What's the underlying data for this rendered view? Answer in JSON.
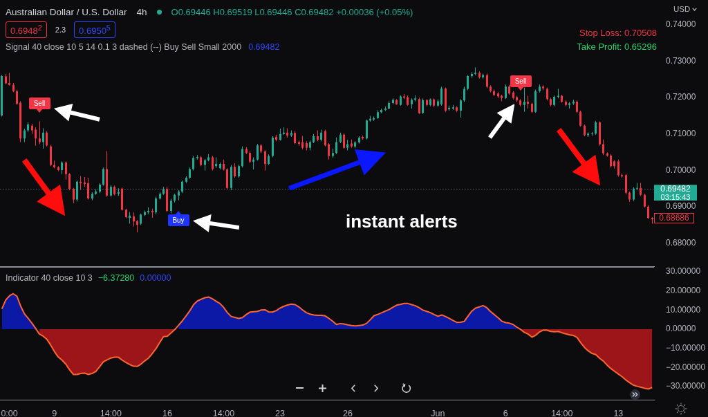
{
  "chart_data": [
    {
      "type": "candlestick",
      "title": "Australian Dollar / U.S. Dollar",
      "subtitle": "4h",
      "ylabel": "USD",
      "categories": [
        null,
        null,
        null,
        null,
        null,
        null,
        null,
        null,
        null,
        null,
        null,
        null,
        null,
        null,
        null,
        null,
        null,
        null,
        null,
        null,
        null,
        null,
        null,
        null,
        null,
        null,
        null,
        null,
        null,
        null,
        null,
        null,
        null,
        null,
        null,
        null,
        null,
        null,
        null,
        null,
        null,
        null,
        null,
        null,
        null,
        null,
        null,
        null,
        null,
        null,
        null,
        null,
        null,
        null,
        null,
        null,
        null,
        null,
        null,
        null,
        null,
        null,
        null,
        null,
        null,
        null,
        null,
        null,
        null,
        null,
        null,
        null,
        null,
        null,
        null,
        null,
        null,
        null,
        null,
        null,
        null,
        null,
        null,
        null,
        null,
        null,
        null,
        null,
        null,
        null,
        null,
        null,
        null,
        null,
        null,
        null,
        null,
        null,
        null,
        null,
        null,
        null,
        null,
        null,
        null,
        null,
        null,
        null,
        null,
        null,
        null,
        null,
        null,
        null,
        null,
        null,
        null,
        null,
        null,
        null,
        null,
        null,
        null,
        null,
        null,
        null,
        null,
        null,
        null,
        null,
        null,
        null,
        null,
        null,
        null,
        null,
        null,
        null,
        null,
        null,
        null,
        null,
        null,
        null,
        null,
        null,
        null,
        null,
        null,
        null,
        null,
        null,
        null,
        null,
        null,
        null,
        null,
        null,
        null,
        null,
        null,
        null,
        null,
        null,
        null,
        null,
        null,
        null,
        null,
        null,
        null,
        null,
        null,
        null
      ],
      "ohlc": [
        [
          0.7151,
          0.7262,
          0.7148,
          0.7259
        ],
        [
          0.7258,
          0.7265,
          0.7237,
          0.7239
        ],
        [
          0.724,
          0.7268,
          0.7233,
          0.7235
        ],
        [
          0.7235,
          0.724,
          0.7215,
          0.7218
        ],
        [
          0.7218,
          0.7221,
          0.718,
          0.7183
        ],
        [
          0.7186,
          0.719,
          0.7078,
          0.7088
        ],
        [
          0.7088,
          0.7115,
          0.7078,
          0.711
        ],
        [
          0.711,
          0.7132,
          0.7106,
          0.7126
        ],
        [
          0.7123,
          0.7128,
          0.71,
          0.711
        ],
        [
          0.7112,
          0.7118,
          0.7068,
          0.7088
        ],
        [
          0.7088,
          0.7135,
          0.7072,
          0.7078
        ],
        [
          0.7078,
          0.7116,
          0.706,
          0.7104
        ],
        [
          0.7104,
          0.7108,
          0.7066,
          0.7069
        ],
        [
          0.7066,
          0.707,
          0.7012,
          0.7015
        ],
        [
          0.7015,
          0.7027,
          0.7006,
          0.7009
        ],
        [
          0.7009,
          0.7012,
          0.6998,
          0.7001
        ],
        [
          0.7001,
          0.7025,
          0.699,
          0.7022
        ],
        [
          0.7022,
          0.7025,
          0.6975,
          0.699
        ],
        [
          0.699,
          0.6993,
          0.6946,
          0.6949
        ],
        [
          0.6949,
          0.6952,
          0.691,
          0.692
        ],
        [
          0.692,
          0.6972,
          0.6915,
          0.6969
        ],
        [
          0.6969,
          0.6985,
          0.6947,
          0.6965
        ],
        [
          0.6967,
          0.6982,
          0.6955,
          0.6963
        ],
        [
          0.6965,
          0.698,
          0.692,
          0.6923
        ],
        [
          0.6923,
          0.694,
          0.6918,
          0.6936
        ],
        [
          0.6936,
          0.6948,
          0.6933,
          0.6942
        ],
        [
          0.6942,
          0.6965,
          0.6938,
          0.6961
        ],
        [
          0.6961,
          0.7008,
          0.6958,
          0.7004
        ],
        [
          0.7004,
          0.7053,
          0.6928,
          0.6931
        ],
        [
          0.6931,
          0.696,
          0.6928,
          0.6955
        ],
        [
          0.6955,
          0.6958,
          0.6932,
          0.6935
        ],
        [
          0.6936,
          0.6951,
          0.693,
          0.6941
        ],
        [
          0.695,
          0.6953,
          0.689,
          0.6892
        ],
        [
          0.6892,
          0.6895,
          0.6869,
          0.6872
        ],
        [
          0.687,
          0.6886,
          0.6854,
          0.6876
        ],
        [
          0.6874,
          0.6885,
          0.6846,
          0.686
        ],
        [
          0.6861,
          0.6864,
          0.683,
          0.6851
        ],
        [
          0.6854,
          0.6882,
          0.685,
          0.6879
        ],
        [
          0.6878,
          0.689,
          0.6875,
          0.6885
        ],
        [
          0.6885,
          0.6899,
          0.688,
          0.6889
        ],
        [
          0.6889,
          0.6895,
          0.687,
          0.6885
        ],
        [
          0.6885,
          0.6928,
          0.688,
          0.6923
        ],
        [
          0.6923,
          0.694,
          0.692,
          0.6936
        ],
        [
          0.6936,
          0.6955,
          0.6933,
          0.6949
        ],
        [
          0.6949,
          0.6955,
          0.6886,
          0.6889
        ],
        [
          0.6889,
          0.6922,
          0.6882,
          0.6917
        ],
        [
          0.6917,
          0.6936,
          0.6912,
          0.6933
        ],
        [
          0.6931,
          0.6946,
          0.6918,
          0.6942
        ],
        [
          0.6942,
          0.6972,
          0.6938,
          0.6969
        ],
        [
          0.6969,
          0.6984,
          0.6966,
          0.698
        ],
        [
          0.698,
          0.7008,
          0.6977,
          0.7004
        ],
        [
          0.7004,
          0.704,
          0.7,
          0.7034
        ],
        [
          0.7034,
          0.7042,
          0.703,
          0.7037
        ],
        [
          0.7036,
          0.704,
          0.7012,
          0.7015
        ],
        [
          0.7015,
          0.7032,
          0.7,
          0.7028
        ],
        [
          0.7028,
          0.7045,
          0.7025,
          0.7036
        ],
        [
          0.7036,
          0.704,
          0.7,
          0.7004
        ],
        [
          0.7012,
          0.7036,
          0.7007,
          0.7018
        ],
        [
          0.7006,
          0.7022,
          0.7003,
          0.7018
        ],
        [
          0.7018,
          0.703,
          0.7,
          0.7003
        ],
        [
          0.7003,
          0.7006,
          0.6948,
          0.6952
        ],
        [
          0.6952,
          0.7015,
          0.6946,
          0.701
        ],
        [
          0.701,
          0.702,
          0.698,
          0.6984
        ],
        [
          0.6984,
          0.7016,
          0.698,
          0.7012
        ],
        [
          0.7012,
          0.7066,
          0.7008,
          0.7059
        ],
        [
          0.7059,
          0.7064,
          0.7045,
          0.7048
        ],
        [
          0.7048,
          0.7052,
          0.702,
          0.7024
        ],
        [
          0.7024,
          0.7036,
          0.7003,
          0.703
        ],
        [
          0.703,
          0.7073,
          0.7027,
          0.7069
        ],
        [
          0.7069,
          0.7072,
          0.7048,
          0.7052
        ],
        [
          0.7052,
          0.7055,
          0.7,
          0.7018
        ],
        [
          0.7018,
          0.7044,
          0.7015,
          0.704
        ],
        [
          0.704,
          0.7094,
          0.7036,
          0.709
        ],
        [
          0.7092,
          0.7098,
          0.708,
          0.7084
        ],
        [
          0.7084,
          0.7115,
          0.7082,
          0.71
        ],
        [
          0.71,
          0.7118,
          0.7098,
          0.7104
        ],
        [
          0.7104,
          0.7116,
          0.709,
          0.7096
        ],
        [
          0.7096,
          0.711,
          0.7092,
          0.7103
        ],
        [
          0.7103,
          0.7108,
          0.7072,
          0.7075
        ],
        [
          0.7078,
          0.7082,
          0.7068,
          0.7073
        ],
        [
          0.7078,
          0.7095,
          0.7058,
          0.7062
        ],
        [
          0.7075,
          0.708,
          0.7055,
          0.7062
        ],
        [
          0.7062,
          0.7082,
          0.7055,
          0.7078
        ],
        [
          0.7078,
          0.71,
          0.7075,
          0.7094
        ],
        [
          0.7094,
          0.711,
          0.708,
          0.7084
        ],
        [
          0.7084,
          0.7112,
          0.708,
          0.7104
        ],
        [
          0.7108,
          0.7112,
          0.7066,
          0.7069
        ],
        [
          0.7072,
          0.7075,
          0.703,
          0.704
        ],
        [
          0.704,
          0.706,
          0.7035,
          0.7048
        ],
        [
          0.7048,
          0.709,
          0.7045,
          0.7078
        ],
        [
          0.7078,
          0.7104,
          0.7075,
          0.7098
        ],
        [
          0.7098,
          0.7102,
          0.706,
          0.7062
        ],
        [
          0.7062,
          0.7084,
          0.7055,
          0.7072
        ],
        [
          0.7074,
          0.7085,
          0.7062,
          0.7066
        ],
        [
          0.7066,
          0.708,
          0.7062,
          0.7077
        ],
        [
          0.7077,
          0.7094,
          0.7074,
          0.709
        ],
        [
          0.7092,
          0.7096,
          0.7084,
          0.7088
        ],
        [
          0.7088,
          0.714,
          0.7085,
          0.7137
        ],
        [
          0.7137,
          0.715,
          0.7134,
          0.7142
        ],
        [
          0.714,
          0.7148,
          0.7136,
          0.7144
        ],
        [
          0.7144,
          0.7165,
          0.7142,
          0.716
        ],
        [
          0.716,
          0.717,
          0.7157,
          0.7166
        ],
        [
          0.7166,
          0.7175,
          0.7163,
          0.717
        ],
        [
          0.717,
          0.719,
          0.7168,
          0.7185
        ],
        [
          0.7185,
          0.7198,
          0.7182,
          0.7194
        ],
        [
          0.7193,
          0.7196,
          0.718,
          0.7182
        ],
        [
          0.718,
          0.7206,
          0.7178,
          0.7203
        ],
        [
          0.7203,
          0.721,
          0.7196,
          0.72
        ],
        [
          0.7201,
          0.7206,
          0.7178,
          0.718
        ],
        [
          0.7182,
          0.7198,
          0.717,
          0.7194
        ],
        [
          0.7194,
          0.7206,
          0.719,
          0.7198
        ],
        [
          0.7196,
          0.72,
          0.7155,
          0.7157
        ],
        [
          0.7158,
          0.7198,
          0.7155,
          0.7193
        ],
        [
          0.7193,
          0.7196,
          0.7176,
          0.718
        ],
        [
          0.718,
          0.7198,
          0.7176,
          0.7195
        ],
        [
          0.7195,
          0.7198,
          0.7174,
          0.7178
        ],
        [
          0.7178,
          0.7195,
          0.7175,
          0.719
        ],
        [
          0.7182,
          0.723,
          0.7178,
          0.7225
        ],
        [
          0.7225,
          0.7228,
          0.716,
          0.7164
        ],
        [
          0.7168,
          0.7178,
          0.7164,
          0.7172
        ],
        [
          0.717,
          0.718,
          0.7166,
          0.7173
        ],
        [
          0.7173,
          0.7176,
          0.716,
          0.7164
        ],
        [
          0.7164,
          0.7196,
          0.7145,
          0.7192
        ],
        [
          0.7192,
          0.723,
          0.7188,
          0.7224
        ],
        [
          0.7224,
          0.7262,
          0.722,
          0.7259
        ],
        [
          0.7259,
          0.727,
          0.7255,
          0.7265
        ],
        [
          0.7265,
          0.7283,
          0.7262,
          0.7268
        ],
        [
          0.7268,
          0.7272,
          0.7252,
          0.7256
        ],
        [
          0.7256,
          0.7266,
          0.7252,
          0.7262
        ],
        [
          0.7262,
          0.7266,
          0.7226,
          0.723
        ],
        [
          0.723,
          0.7234,
          0.7214,
          0.7218
        ],
        [
          0.7218,
          0.7222,
          0.7204,
          0.7208
        ],
        [
          0.7211,
          0.7215,
          0.7199,
          0.7203
        ],
        [
          0.7205,
          0.7208,
          0.719,
          0.7199
        ],
        [
          0.7199,
          0.7236,
          0.7196,
          0.723
        ],
        [
          0.723,
          0.7235,
          0.7208,
          0.7211
        ],
        [
          0.7214,
          0.7218,
          0.7195,
          0.7199
        ],
        [
          0.7201,
          0.7205,
          0.7188,
          0.7192
        ],
        [
          0.7192,
          0.7196,
          0.7176,
          0.718
        ],
        [
          0.718,
          0.7228,
          0.7161,
          0.7189
        ],
        [
          0.7189,
          0.7205,
          0.717,
          0.7183
        ],
        [
          0.7183,
          0.7186,
          0.7158,
          0.7161
        ],
        [
          0.7161,
          0.7222,
          0.7158,
          0.7218
        ],
        [
          0.7218,
          0.7236,
          0.7214,
          0.723
        ],
        [
          0.723,
          0.7234,
          0.722,
          0.7226
        ],
        [
          0.7224,
          0.7228,
          0.7192,
          0.7196
        ],
        [
          0.7196,
          0.72,
          0.7176,
          0.718
        ],
        [
          0.718,
          0.7206,
          0.7176,
          0.7202
        ],
        [
          0.7202,
          0.7224,
          0.7198,
          0.7205
        ],
        [
          0.7205,
          0.7208,
          0.7186,
          0.7189
        ],
        [
          0.7189,
          0.7192,
          0.7176,
          0.718
        ],
        [
          0.718,
          0.7188,
          0.717,
          0.7184
        ],
        [
          0.7184,
          0.7194,
          0.718,
          0.7189
        ],
        [
          0.7189,
          0.7192,
          0.7158,
          0.7161
        ],
        [
          0.7161,
          0.7164,
          0.712,
          0.7123
        ],
        [
          0.7123,
          0.7126,
          0.7094,
          0.7097
        ],
        [
          0.7097,
          0.7105,
          0.7092,
          0.7101
        ],
        [
          0.7099,
          0.7106,
          0.7096,
          0.7101
        ],
        [
          0.7101,
          0.7136,
          0.7098,
          0.7132
        ],
        [
          0.7132,
          0.7135,
          0.7068,
          0.7072
        ],
        [
          0.7072,
          0.7085,
          0.7042,
          0.7047
        ],
        [
          0.7047,
          0.705,
          0.7038,
          0.7041
        ],
        [
          0.7041,
          0.7045,
          0.7008,
          0.7012
        ],
        [
          0.7025,
          0.7028,
          0.7005,
          0.7012
        ],
        [
          0.7025,
          0.703,
          0.6983,
          0.6987
        ],
        [
          0.6987,
          0.6992,
          0.698,
          0.6984
        ],
        [
          0.6987,
          0.699,
          0.6935,
          0.6939
        ],
        [
          0.6939,
          0.6942,
          0.6914,
          0.692
        ],
        [
          0.692,
          0.6954,
          0.6916,
          0.695
        ],
        [
          0.695,
          0.6966,
          0.6946,
          0.6952
        ],
        [
          0.6952,
          0.6966,
          0.693,
          0.6933
        ],
        [
          0.6933,
          0.6936,
          0.6898,
          0.6901
        ],
        [
          0.6901,
          0.6904,
          0.6866,
          0.687
        ],
        [
          0.687,
          0.6872,
          0.6854,
          0.6866
        ]
      ],
      "ylim": [
        0.6737,
        0.7468
      ],
      "yticks": [
        {
          "value": 0.68,
          "label": "0.68000"
        },
        {
          "value": 0.69,
          "label": "0.69000"
        },
        {
          "value": 0.7,
          "label": "0.70000"
        },
        {
          "value": 0.71,
          "label": "0.71000"
        },
        {
          "value": 0.72,
          "label": "0.72000"
        },
        {
          "value": 0.73,
          "label": "0.73000"
        },
        {
          "value": 0.74,
          "label": "0.74000"
        }
      ],
      "ref_lines": [
        {
          "axis": "y",
          "value": 0.69482,
          "label": "0.69482",
          "color": "#5d606b",
          "line_style": "dotted"
        }
      ],
      "annotations": [
        "O0.69446 H0.69519 L0.69446 C0.69482 +0.00036 (+0.05%)",
        "0.6948$^{2}$",
        "2.3",
        "0.6950$^{5}$",
        "Signal 40 close 10 5 14 0.1 3 dashed (--) Buy Sell Small 2000",
        "0.69482",
        "Stop Loss: 0.70508",
        "Take Profit: 0.65296",
        "instant alerts",
        "03:15:43",
        "0.68686",
        "Sell",
        "Sell",
        "Buy"
      ],
      "tick_labels": "y"
    },
    {
      "type": "area",
      "title": "Indicator 40 close 10 3",
      "categories": [
        null,
        null,
        "0:00",
        null,
        null,
        null,
        null,
        null,
        null,
        null,
        null,
        null,
        null,
        null,
        "9",
        null,
        null,
        null,
        null,
        null,
        null,
        null,
        null,
        null,
        null,
        null,
        null,
        null,
        null,
        "14:00",
        null,
        null,
        null,
        null,
        null,
        null,
        null,
        null,
        null,
        null,
        null,
        null,
        null,
        null,
        "16",
        null,
        null,
        null,
        null,
        null,
        null,
        null,
        null,
        null,
        null,
        null,
        null,
        null,
        null,
        "14:00",
        null,
        null,
        null,
        null,
        null,
        null,
        null,
        null,
        null,
        null,
        null,
        null,
        null,
        null,
        "23",
        null,
        null,
        null,
        null,
        null,
        null,
        null,
        null,
        null,
        null,
        null,
        null,
        null,
        null,
        null,
        null,
        null,
        "26",
        null,
        null,
        null,
        null,
        null,
        null,
        null,
        null,
        null,
        null,
        null,
        null,
        null,
        null,
        null,
        null,
        null,
        null,
        null,
        null,
        null,
        null,
        null,
        "Jun",
        null,
        null,
        null,
        null,
        null,
        null,
        null,
        null,
        null,
        null,
        null,
        null,
        null,
        null,
        null,
        null,
        null,
        "6",
        null,
        null,
        null,
        null,
        null,
        null,
        null,
        null,
        null,
        null,
        null,
        null,
        null,
        null,
        "14:00",
        null,
        null,
        null,
        null,
        null,
        null,
        null,
        null,
        null,
        null,
        null,
        null,
        null,
        null,
        "13",
        null,
        null,
        null,
        null,
        null,
        null,
        null,
        null,
        null
      ],
      "series": [
        {
          "type": "area",
          "color": "#0c18a6",
          "values": [
            10.6,
            15.1,
            17.4,
            18.5,
            17.2,
            12.0,
            8.0,
            5.6,
            3.1,
            0.3,
            null,
            null,
            null,
            null,
            null,
            null,
            null,
            null,
            null,
            null,
            null,
            null,
            null,
            null,
            null,
            null,
            null,
            null,
            null,
            null,
            null,
            null,
            null,
            null,
            null,
            null,
            null,
            null,
            null,
            null,
            null,
            null,
            null,
            null,
            null,
            null,
            null,
            2.0,
            4.3,
            6.9,
            9.6,
            12.8,
            14.7,
            15.6,
            16.4,
            16.8,
            15.8,
            14.6,
            13.4,
            11.3,
            8.6,
            6.6,
            6.1,
            5.6,
            6.0,
            7.6,
            8.9,
            9.1,
            9.3,
            10.0,
            10.1,
            9.0,
            8.9,
            9.7,
            11.0,
            11.9,
            12.6,
            13.1,
            12.8,
            11.6,
            10.0,
            8.6,
            7.8,
            7.4,
            7.2,
            7.2,
            6.9,
            5.6,
            4.1,
            2.4,
            2.9,
            2.7,
            2.2,
            1.9,
            1.7,
            1.9,
            2.1,
            3.0,
            4.9,
            7.0,
            7.7,
            8.5,
            9.4,
            10.2,
            11.4,
            12.5,
            12.9,
            13.4,
            13.4,
            12.8,
            12.2,
            11.2,
            9.9,
            9.3,
            8.6,
            7.6,
            6.7,
            7.4,
            6.6,
            5.6,
            4.5,
            3.5,
            3.6,
            4.0,
            6.8,
            9.4,
            11.0,
            11.6,
            12.3,
            11.2,
            9.2,
            7.6,
            5.9,
            4.1,
            3.4,
            3.1,
            2.4,
            1.0,
            null,
            null,
            null,
            null,
            null,
            null,
            null,
            null,
            null,
            null,
            null,
            null,
            null,
            null,
            null,
            null,
            null,
            null,
            null,
            null,
            null,
            null,
            null,
            null,
            null,
            null,
            null,
            null,
            null,
            null,
            null,
            null,
            null,
            null,
            null,
            null
          ]
        },
        {
          "type": "area",
          "color": "#9c1519",
          "values": [
            null,
            null,
            null,
            null,
            null,
            null,
            null,
            null,
            null,
            null,
            -2.6,
            -3.7,
            -5.4,
            -8.4,
            -11.8,
            -14.6,
            -16.2,
            -18.3,
            -21.2,
            -23.7,
            -23.7,
            -23.2,
            -23.0,
            -23.7,
            -23.2,
            -22.1,
            -19.7,
            -17.1,
            -16.1,
            -15.1,
            -14.7,
            -14.7,
            -16.2,
            -17.4,
            -18.5,
            -19.4,
            -19.5,
            -18.3,
            -16.6,
            -15.2,
            -12.8,
            -10.2,
            -7.0,
            -3.9,
            -3.7,
            -2.0,
            -0.2,
            null,
            null,
            null,
            null,
            null,
            null,
            null,
            null,
            null,
            null,
            null,
            null,
            null,
            null,
            null,
            null,
            null,
            null,
            null,
            null,
            null,
            null,
            null,
            null,
            null,
            null,
            null,
            null,
            null,
            null,
            null,
            null,
            null,
            null,
            null,
            null,
            null,
            null,
            null,
            null,
            null,
            null,
            null,
            null,
            null,
            null,
            null,
            null,
            null,
            null,
            null,
            null,
            null,
            null,
            null,
            null,
            null,
            null,
            null,
            null,
            null,
            null,
            null,
            null,
            null,
            null,
            null,
            null,
            null,
            null,
            null,
            null,
            null,
            null,
            null,
            null,
            null,
            null,
            null,
            null,
            null,
            null,
            null,
            null,
            null,
            null,
            null,
            null,
            null,
            null,
            null,
            -0.2,
            -1.7,
            -2.6,
            -4.2,
            -3.2,
            -1.5,
            -0.5,
            -0.6,
            -1.2,
            -1.4,
            -1.2,
            -1.9,
            -2.5,
            -3.0,
            -3.3,
            -4.3,
            -7.1,
            -9.6,
            -11.4,
            -12.7,
            -13.3,
            -15.2,
            -16.7,
            -18.8,
            -20.6,
            -22.1,
            -23.5,
            -24.9,
            -26.6,
            -28.0,
            -29.3,
            -29.9,
            -30.4,
            -30.9,
            -31.3,
            -30.5
          ]
        },
        {
          "type": "line",
          "color": "#ff6530",
          "values": [
            10.6,
            15.1,
            17.4,
            18.5,
            17.2,
            12.0,
            8.0,
            5.6,
            3.1,
            0.3,
            -2.6,
            -3.7,
            -5.4,
            -8.4,
            -11.8,
            -14.6,
            -16.2,
            -18.3,
            -21.2,
            -23.7,
            -23.7,
            -23.2,
            -23.0,
            -23.7,
            -23.2,
            -22.1,
            -19.7,
            -17.1,
            -16.1,
            -15.1,
            -14.7,
            -14.7,
            -16.2,
            -17.4,
            -18.5,
            -19.4,
            -19.5,
            -18.3,
            -16.6,
            -15.2,
            -12.8,
            -10.2,
            -7.0,
            -3.9,
            -3.7,
            -2.0,
            -0.2,
            2.0,
            4.3,
            6.9,
            9.6,
            12.8,
            14.7,
            15.6,
            16.4,
            16.8,
            15.8,
            14.6,
            13.4,
            11.3,
            8.6,
            6.6,
            6.1,
            5.6,
            6.0,
            7.6,
            8.9,
            9.1,
            9.3,
            10.0,
            10.1,
            9.0,
            8.9,
            9.7,
            11.0,
            11.9,
            12.6,
            13.1,
            12.8,
            11.6,
            10.0,
            8.6,
            7.8,
            7.4,
            7.2,
            7.2,
            6.9,
            5.6,
            4.1,
            2.4,
            2.9,
            2.7,
            2.2,
            1.9,
            1.7,
            1.9,
            2.1,
            3.0,
            4.9,
            7.0,
            7.7,
            8.5,
            9.4,
            10.2,
            11.4,
            12.5,
            12.9,
            13.4,
            13.4,
            12.8,
            12.2,
            11.2,
            9.9,
            9.3,
            8.6,
            7.6,
            6.7,
            7.4,
            6.6,
            5.6,
            4.5,
            3.5,
            3.6,
            4.0,
            6.8,
            9.4,
            11.0,
            11.6,
            12.3,
            11.2,
            9.2,
            7.6,
            5.9,
            4.1,
            3.4,
            3.1,
            2.4,
            1.0,
            -0.2,
            -1.7,
            -2.6,
            -4.2,
            -3.2,
            -1.5,
            -0.5,
            -0.6,
            -1.2,
            -1.4,
            -1.2,
            -1.9,
            -2.5,
            -3.0,
            -3.3,
            -4.3,
            -7.1,
            -9.6,
            -11.4,
            -12.7,
            -13.3,
            -15.2,
            -16.7,
            -18.8,
            -20.6,
            -22.1,
            -23.5,
            -24.9,
            -26.6,
            -28.0,
            -29.3,
            -29.9,
            -30.4,
            -30.9,
            -31.3,
            -30.5
          ]
        }
      ],
      "ylim": [
        -36.9,
        32.5
      ],
      "yticks": [
        {
          "value": -30,
          "label": "−30.00000"
        },
        {
          "value": -20,
          "label": "−20.00000"
        },
        {
          "value": -10,
          "label": "−10.00000"
        },
        {
          "value": 0,
          "label": "0.00000"
        },
        {
          "value": 10,
          "label": "10.00000"
        },
        {
          "value": 20,
          "label": "20.00000"
        },
        {
          "value": 30,
          "label": "30.00000"
        }
      ],
      "annotations": [
        "−6.37280",
        "0.00000"
      ]
    }
  ]
}
